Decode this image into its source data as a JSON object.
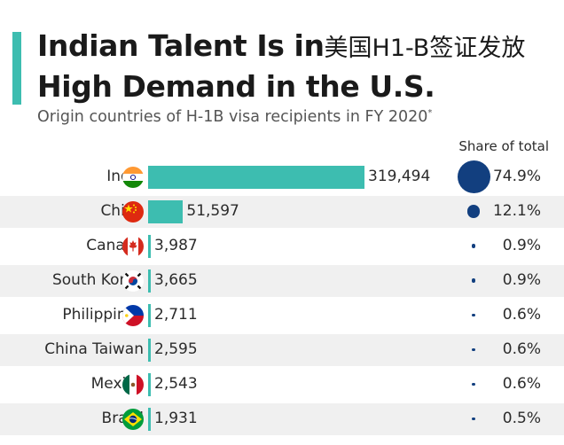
{
  "header": {
    "title_line1_latin": "Indian Talent Is in",
    "title_line1_cjk": "美国H1-B签证发放",
    "title_line2": "High Demand in the U.S.",
    "subtitle": "Origin countries of H-1B visa recipients in FY 2020",
    "subtitle_mark": "*",
    "share_header": "Share of total"
  },
  "colors": {
    "bar": "#3dbdb0",
    "dot": "#123f7f",
    "stripe": "#f0f0f0",
    "accent": "#3dbdb0"
  },
  "chart_data": {
    "type": "bar",
    "orientation": "horizontal",
    "title": "Indian Talent Is in High Demand in the U.S.",
    "subtitle": "Origin countries of H-1B visa recipients in FY 2020",
    "categories": [
      "India",
      "China",
      "Canada",
      "South Korea",
      "Philippines",
      "China Taiwan",
      "Mexico",
      "Brazil"
    ],
    "values": [
      319494,
      51597,
      3987,
      3665,
      2711,
      2595,
      2543,
      1931
    ],
    "value_labels": [
      "319,494",
      "51,597",
      "3,987",
      "3,665",
      "2,711",
      "2,595",
      "2,543",
      "1,931"
    ],
    "share_of_total": [
      74.9,
      12.1,
      0.9,
      0.9,
      0.6,
      0.6,
      0.6,
      0.5
    ],
    "share_labels": [
      "74.9%",
      "12.1%",
      "0.9%",
      "0.9%",
      "0.6%",
      "0.6%",
      "0.6%",
      "0.5%"
    ],
    "flags": [
      "india-flag",
      "china-flag",
      "canada-flag",
      "south-korea-flag",
      "philippines-flag",
      "",
      "mexico-flag",
      "brazil-flag"
    ],
    "xlim": [
      0,
      319494
    ],
    "grid": false,
    "legend": "none"
  }
}
